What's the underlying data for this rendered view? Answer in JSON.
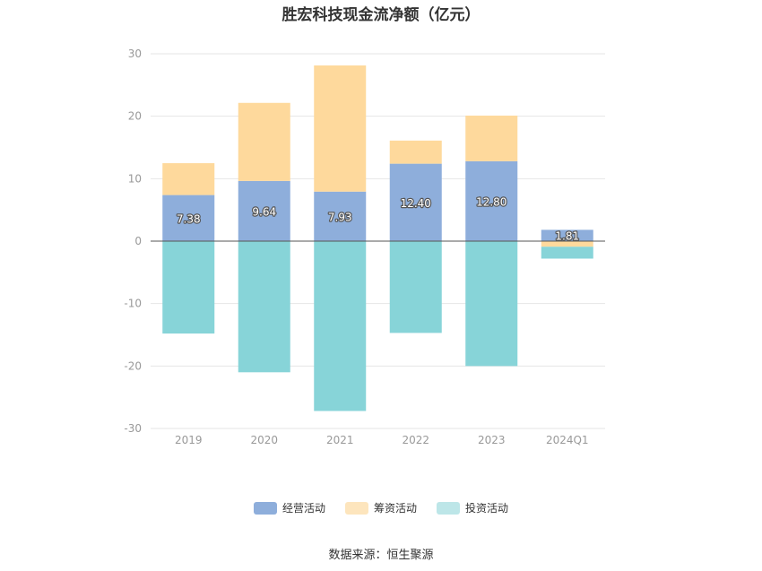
{
  "chart_data": {
    "type": "bar",
    "stacked": true,
    "title": "胜宏科技现金流净额（亿元）",
    "xlabel": "",
    "ylabel": "",
    "categories": [
      "2019",
      "2020",
      "2021",
      "2022",
      "2023",
      "2024Q1"
    ],
    "ylim": [
      -30,
      30
    ],
    "yticks": [
      30,
      20,
      10,
      0,
      -10,
      -20,
      -30
    ],
    "grid": true,
    "legend_position": "bottom",
    "series": [
      {
        "name": "经营活动",
        "color": "#8eaedb",
        "values": [
          7.38,
          9.64,
          7.93,
          12.4,
          12.8,
          1.81
        ],
        "labels": [
          "7.38",
          "9.64",
          "7.93",
          "12.40",
          "12.80",
          "1.81"
        ]
      },
      {
        "name": "筹资活动",
        "color": "#fed99c",
        "values": [
          5.1,
          12.5,
          20.2,
          3.7,
          7.3,
          -0.9
        ]
      },
      {
        "name": "投资活动",
        "color": "#87d4d8",
        "values": [
          -14.8,
          -21.0,
          -27.2,
          -14.7,
          -20.0,
          -1.9
        ]
      }
    ],
    "source": "数据来源：恒生聚源"
  }
}
